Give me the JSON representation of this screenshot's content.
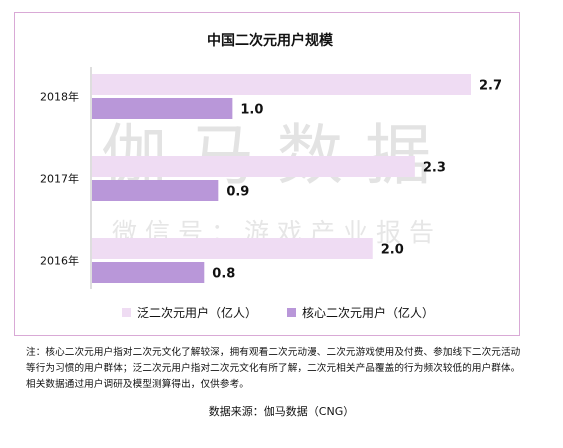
{
  "chart_data": {
    "type": "bar",
    "orientation": "horizontal",
    "title": "中国二次元用户规模",
    "categories": [
      "2018年",
      "2017年",
      "2016年"
    ],
    "series": [
      {
        "name": "泛二次元用户（亿人）",
        "values": [
          2.7,
          2.3,
          2.0
        ],
        "color": "#efdcf3"
      },
      {
        "name": "核心二次元用户（亿人）",
        "values": [
          1.0,
          0.9,
          0.8
        ],
        "color": "#b997d9"
      }
    ],
    "value_labels": [
      [
        "2.7",
        "2.3",
        "2.0"
      ],
      [
        "1.0",
        "0.9",
        "0.8"
      ]
    ],
    "xlim": [
      0,
      2.7
    ],
    "grid": false,
    "legend_position": "bottom"
  },
  "watermark": {
    "line1": "伽马数据",
    "line2": "微信号：游戏产业报告"
  },
  "note": "注：核心二次元用户指对二次元文化了解较深，拥有观看二次元动漫、二次元游戏使用及付费、参加线下二次元活动等行为习惯的用户群体；泛二次元用户指对二次元文化有所了解，二次元相关产品覆盖的行为频次较低的用户群体。相关数据通过用户调研及模型测算得出，仅供参考。",
  "source": "数据来源：伽马数据（CNG）"
}
